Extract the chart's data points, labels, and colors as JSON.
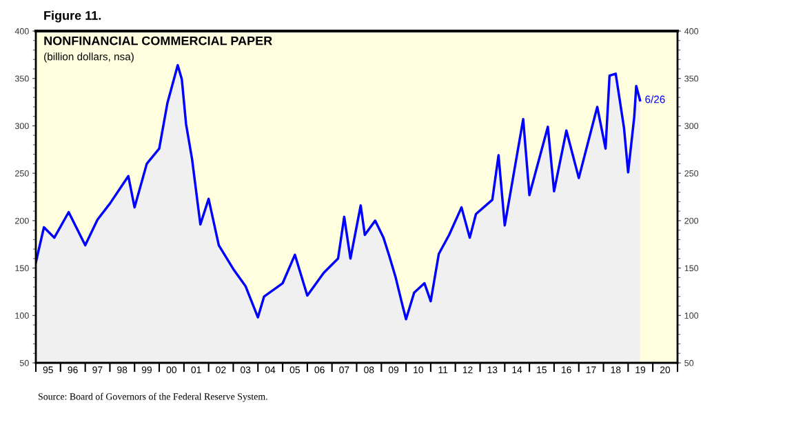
{
  "chart_data": {
    "type": "area",
    "title": "NONFINANCIAL COMMERCIAL PAPER",
    "subtitle": "(billion dollars, nsa)",
    "x": [
      "1995-01",
      "1995-05",
      "1995-10",
      "1996-05",
      "1997-01",
      "1997-07",
      "1998-01",
      "1998-10",
      "1999-01",
      "1999-07",
      "2000-01",
      "2000-05",
      "2000-10",
      "2000-12",
      "2001-02",
      "2001-05",
      "2001-09",
      "2002-01",
      "2002-06",
      "2003-01",
      "2003-07",
      "2004-01",
      "2004-04",
      "2005-01",
      "2005-07",
      "2006-01",
      "2006-09",
      "2007-04",
      "2007-07",
      "2007-10",
      "2008-03",
      "2008-05",
      "2008-10",
      "2009-02",
      "2009-05",
      "2009-08",
      "2009-11",
      "2010-01",
      "2010-05",
      "2010-10",
      "2011-01",
      "2011-05",
      "2011-10",
      "2012-04",
      "2012-08",
      "2012-11",
      "2013-07",
      "2013-10",
      "2014-01",
      "2014-10",
      "2015-01",
      "2015-10",
      "2016-01",
      "2016-07",
      "2017-01",
      "2017-10",
      "2018-02",
      "2018-04",
      "2018-07",
      "2018-11",
      "2019-01",
      "2019-04",
      "2019-05",
      "2019-06-26"
    ],
    "series": [
      {
        "color": "#0000ff",
        "values": [
          156,
          193,
          182,
          209,
          174,
          201,
          218,
          247,
          214,
          260,
          276,
          324,
          364,
          349,
          302,
          265,
          196,
          223,
          174,
          149,
          131,
          98,
          120,
          134,
          164,
          121,
          145,
          160,
          204,
          160,
          216,
          185,
          200,
          182,
          162,
          140,
          113,
          96,
          124,
          134,
          115,
          165,
          185,
          214,
          182,
          207,
          222,
          269,
          195,
          307,
          227,
          299,
          231,
          295,
          245,
          320,
          276,
          353,
          355,
          298,
          251,
          309,
          342,
          327
        ]
      }
    ],
    "xlim": [
      "1995-01-01",
      "2021-01-01"
    ],
    "xticks": [
      {
        "value": "1995-01-01",
        "label": null
      },
      {
        "value": "1995-07-01",
        "label": "95"
      },
      {
        "value": "1996-01-01",
        "label": null
      },
      {
        "value": "1996-07-01",
        "label": "96"
      },
      {
        "value": "1997-01-01",
        "label": null
      },
      {
        "value": "1997-07-01",
        "label": "97"
      },
      {
        "value": "1998-01-01",
        "label": null
      },
      {
        "value": "1998-07-01",
        "label": "98"
      },
      {
        "value": "1999-01-01",
        "label": null
      },
      {
        "value": "1999-07-01",
        "label": "99"
      },
      {
        "value": "2000-01-01",
        "label": null
      },
      {
        "value": "2000-07-01",
        "label": "00"
      },
      {
        "value": "2001-01-01",
        "label": null
      },
      {
        "value": "2001-07-01",
        "label": "01"
      },
      {
        "value": "2002-01-01",
        "label": null
      },
      {
        "value": "2002-07-01",
        "label": "02"
      },
      {
        "value": "2003-01-01",
        "label": null
      },
      {
        "value": "2003-07-01",
        "label": "03"
      },
      {
        "value": "2004-01-01",
        "label": null
      },
      {
        "value": "2004-07-01",
        "label": "04"
      },
      {
        "value": "2005-01-01",
        "label": null
      },
      {
        "value": "2005-07-01",
        "label": "05"
      },
      {
        "value": "2006-01-01",
        "label": null
      },
      {
        "value": "2006-07-01",
        "label": "06"
      },
      {
        "value": "2007-01-01",
        "label": null
      },
      {
        "value": "2007-07-01",
        "label": "07"
      },
      {
        "value": "2008-01-01",
        "label": null
      },
      {
        "value": "2008-07-01",
        "label": "08"
      },
      {
        "value": "2009-01-01",
        "label": null
      },
      {
        "value": "2009-07-01",
        "label": "09"
      },
      {
        "value": "2010-01-01",
        "label": null
      },
      {
        "value": "2010-07-01",
        "label": "10"
      },
      {
        "value": "2011-01-01",
        "label": null
      },
      {
        "value": "2011-07-01",
        "label": "11"
      },
      {
        "value": "2012-01-01",
        "label": null
      },
      {
        "value": "2012-07-01",
        "label": "12"
      },
      {
        "value": "2013-01-01",
        "label": null
      },
      {
        "value": "2013-07-01",
        "label": "13"
      },
      {
        "value": "2014-01-01",
        "label": null
      },
      {
        "value": "2014-07-01",
        "label": "14"
      },
      {
        "value": "2015-01-01",
        "label": null
      },
      {
        "value": "2015-07-01",
        "label": "15"
      },
      {
        "value": "2016-01-01",
        "label": null
      },
      {
        "value": "2016-07-01",
        "label": "16"
      },
      {
        "value": "2017-01-01",
        "label": null
      },
      {
        "value": "2017-07-01",
        "label": "17"
      },
      {
        "value": "2018-01-01",
        "label": null
      },
      {
        "value": "2018-07-01",
        "label": "18"
      },
      {
        "value": "2019-01-01",
        "label": null
      },
      {
        "value": "2019-07-01",
        "label": "19"
      },
      {
        "value": "2020-01-01",
        "label": null
      },
      {
        "value": "2020-07-01",
        "label": "20"
      },
      {
        "value": "2021-01-01",
        "label": null
      }
    ],
    "ylim": [
      50,
      400
    ],
    "yticks": [
      50,
      100,
      150,
      200,
      250,
      300,
      350,
      400
    ],
    "y2lim": [
      50,
      400
    ],
    "y2ticks": [
      50,
      100,
      150,
      200,
      250,
      300,
      350,
      400
    ],
    "grid": false,
    "annotations": [
      "Figure 11.",
      {
        "text": "6/26",
        "x": "2019-06-26",
        "y": 327
      },
      "Source: Board of Governors of the Federal Reserve System."
    ]
  }
}
